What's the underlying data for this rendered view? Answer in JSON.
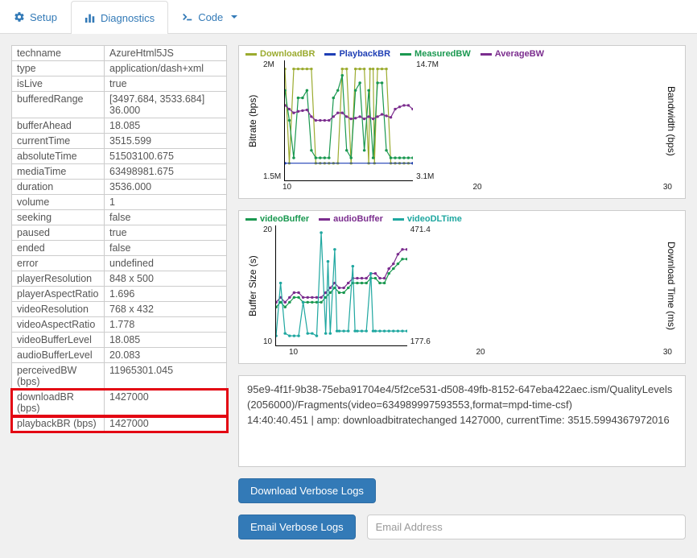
{
  "tabs": {
    "setup": {
      "label": "Setup"
    },
    "diagnostics": {
      "label": "Diagnostics"
    },
    "code": {
      "label": "Code"
    }
  },
  "colors": {
    "accent": "#337ab7",
    "highlight": "#e30613",
    "downloadBR": "#9bab2f",
    "playbackBR": "#1f3fb5",
    "measuredBW": "#1a9850",
    "averageBW": "#7b2d8e",
    "videoBuffer": "#1a9850",
    "audioBuffer": "#7b2d8e",
    "videoDLTime": "#1fa7a0"
  },
  "props": [
    {
      "k": "techname",
      "v": "AzureHtml5JS"
    },
    {
      "k": "type",
      "v": "application/dash+xml"
    },
    {
      "k": "isLive",
      "v": "true"
    },
    {
      "k": "bufferedRange",
      "v": "[3497.684, 3533.684] 36.000"
    },
    {
      "k": "bufferAhead",
      "v": "18.085"
    },
    {
      "k": "currentTime",
      "v": "3515.599"
    },
    {
      "k": "absoluteTime",
      "v": "51503100.675"
    },
    {
      "k": "mediaTime",
      "v": "63498981.675"
    },
    {
      "k": "duration",
      "v": "3536.000"
    },
    {
      "k": "volume",
      "v": "1"
    },
    {
      "k": "seeking",
      "v": "false"
    },
    {
      "k": "paused",
      "v": "true"
    },
    {
      "k": "ended",
      "v": "false"
    },
    {
      "k": "error",
      "v": "undefined"
    },
    {
      "k": "playerResolution",
      "v": "848 x 500"
    },
    {
      "k": "playerAspectRatio",
      "v": "1.696"
    },
    {
      "k": "videoResolution",
      "v": "768 x 432"
    },
    {
      "k": "videoAspectRatio",
      "v": "1.778"
    },
    {
      "k": "videoBufferLevel",
      "v": "18.085"
    },
    {
      "k": "audioBufferLevel",
      "v": "20.083"
    },
    {
      "k": "perceivedBW (bps)",
      "v": "11965301.045"
    },
    {
      "k": "downloadBR (bps)",
      "v": "1427000",
      "highlight": true
    },
    {
      "k": "playbackBR (bps)",
      "v": "1427000",
      "highlight": true
    }
  ],
  "chart1": {
    "legend": [
      {
        "name": "DownloadBR",
        "color": "#9bab2f"
      },
      {
        "name": "PlaybackBR",
        "color": "#1f3fb5"
      },
      {
        "name": "MeasuredBW",
        "color": "#1a9850"
      },
      {
        "name": "AverageBW",
        "color": "#7b2d8e"
      }
    ],
    "ylabel_left": "Bitrate (bps)",
    "ylabel_right": "Bandwidth (bps)",
    "yticks_left": [
      "2M",
      "1.5M"
    ],
    "yticks_right": [
      "14.7M",
      "3.1M"
    ],
    "xticks": [
      "10",
      "20",
      "30"
    ],
    "xlim": [
      7,
      36
    ],
    "series": {
      "downloadBR": {
        "color": "#9bab2f",
        "ylim": [
          1.4,
          2.1
        ],
        "pts": [
          [
            7,
            2.05
          ],
          [
            8,
            1.5
          ],
          [
            9,
            2.05
          ],
          [
            10,
            2.05
          ],
          [
            11,
            2.05
          ],
          [
            12,
            2.05
          ],
          [
            13,
            2.05
          ],
          [
            14,
            1.5
          ],
          [
            15,
            1.5
          ],
          [
            16,
            1.5
          ],
          [
            17,
            1.5
          ],
          [
            18,
            1.5
          ],
          [
            19,
            1.5
          ],
          [
            20,
            2.05
          ],
          [
            21,
            2.05
          ],
          [
            22,
            1.5
          ],
          [
            23,
            2.05
          ],
          [
            24,
            2.05
          ],
          [
            25,
            2.05
          ],
          [
            26,
            1.5
          ],
          [
            26.3,
            2.05
          ],
          [
            27,
            2.05
          ],
          [
            27.3,
            1.5
          ],
          [
            28,
            2.05
          ],
          [
            29,
            2.05
          ],
          [
            30,
            2.05
          ],
          [
            31,
            1.5
          ],
          [
            32,
            1.5
          ],
          [
            33,
            1.5
          ],
          [
            34,
            1.5
          ],
          [
            35,
            1.5
          ],
          [
            36,
            1.5
          ]
        ]
      },
      "playbackBR": {
        "color": "#1f3fb5",
        "ylim": [
          1.4,
          2.1
        ],
        "pts": [
          [
            7,
            1.5
          ],
          [
            36,
            1.5
          ]
        ]
      },
      "measuredBW": {
        "color": "#1a9850",
        "ylim": [
          0,
          16
        ],
        "pts": [
          [
            7,
            12
          ],
          [
            8,
            8
          ],
          [
            9,
            3
          ],
          [
            10,
            11
          ],
          [
            11,
            11
          ],
          [
            12,
            12
          ],
          [
            13,
            4
          ],
          [
            14,
            3
          ],
          [
            15,
            3
          ],
          [
            16,
            3
          ],
          [
            17,
            3
          ],
          [
            18,
            11
          ],
          [
            19,
            12
          ],
          [
            20,
            14
          ],
          [
            21,
            4
          ],
          [
            22,
            3
          ],
          [
            23,
            12
          ],
          [
            24,
            13
          ],
          [
            25,
            4
          ],
          [
            26,
            12
          ],
          [
            27,
            3
          ],
          [
            28,
            13
          ],
          [
            29,
            13
          ],
          [
            30,
            4
          ],
          [
            31,
            3
          ],
          [
            32,
            3
          ],
          [
            33,
            3
          ],
          [
            34,
            3
          ],
          [
            35,
            3
          ],
          [
            36,
            3
          ]
        ]
      },
      "averageBW": {
        "color": "#7b2d8e",
        "ylim": [
          0,
          16
        ],
        "pts": [
          [
            7,
            10
          ],
          [
            8,
            9.5
          ],
          [
            9,
            9
          ],
          [
            10,
            9.2
          ],
          [
            11,
            9.3
          ],
          [
            12,
            9.4
          ],
          [
            13,
            8.5
          ],
          [
            14,
            8
          ],
          [
            15,
            8
          ],
          [
            16,
            8
          ],
          [
            17,
            8
          ],
          [
            18,
            8.5
          ],
          [
            19,
            9
          ],
          [
            20,
            9
          ],
          [
            21,
            8.5
          ],
          [
            22,
            8.2
          ],
          [
            23,
            8.3
          ],
          [
            24,
            8.5
          ],
          [
            25,
            8.2
          ],
          [
            26,
            8.5
          ],
          [
            27,
            8.2
          ],
          [
            28,
            8.5
          ],
          [
            29,
            8.8
          ],
          [
            30,
            8.6
          ],
          [
            31,
            8.4
          ],
          [
            32,
            9.5
          ],
          [
            33,
            9.8
          ],
          [
            34,
            10
          ],
          [
            35,
            10
          ],
          [
            36,
            9.5
          ]
        ]
      }
    }
  },
  "chart2": {
    "legend": [
      {
        "name": "videoBuffer",
        "color": "#1a9850"
      },
      {
        "name": "audioBuffer",
        "color": "#7b2d8e"
      },
      {
        "name": "videoDLTime",
        "color": "#1fa7a0"
      }
    ],
    "ylabel_left": "Buffer Size (s)",
    "ylabel_right": "Download Time (ms)",
    "yticks_left": [
      "20",
      "10"
    ],
    "yticks_right": [
      "471.4",
      "177.6"
    ],
    "xticks": [
      "10",
      "20",
      "30"
    ],
    "xlim": [
      7,
      36
    ],
    "series": {
      "videoBuffer": {
        "color": "#1a9850",
        "ylim": [
          0,
          25
        ],
        "pts": [
          [
            7,
            8
          ],
          [
            8,
            9
          ],
          [
            9,
            8
          ],
          [
            10,
            9
          ],
          [
            11,
            10
          ],
          [
            12,
            10
          ],
          [
            13,
            9
          ],
          [
            14,
            9
          ],
          [
            15,
            9
          ],
          [
            16,
            9
          ],
          [
            17,
            9
          ],
          [
            18,
            10
          ],
          [
            19,
            11
          ],
          [
            20,
            12
          ],
          [
            21,
            11
          ],
          [
            22,
            11
          ],
          [
            23,
            12
          ],
          [
            24,
            13
          ],
          [
            25,
            13
          ],
          [
            26,
            13
          ],
          [
            27,
            13
          ],
          [
            28,
            14
          ],
          [
            29,
            14
          ],
          [
            30,
            13
          ],
          [
            31,
            13
          ],
          [
            32,
            15
          ],
          [
            33,
            16
          ],
          [
            34,
            17
          ],
          [
            35,
            18
          ],
          [
            36,
            18
          ]
        ]
      },
      "audioBuffer": {
        "color": "#7b2d8e",
        "ylim": [
          0,
          25
        ],
        "pts": [
          [
            7,
            9
          ],
          [
            8,
            10
          ],
          [
            9,
            9
          ],
          [
            10,
            10
          ],
          [
            11,
            11
          ],
          [
            12,
            11
          ],
          [
            13,
            10
          ],
          [
            14,
            10
          ],
          [
            15,
            10
          ],
          [
            16,
            10
          ],
          [
            17,
            10
          ],
          [
            18,
            11
          ],
          [
            19,
            12
          ],
          [
            20,
            13
          ],
          [
            21,
            12
          ],
          [
            22,
            12
          ],
          [
            23,
            13
          ],
          [
            24,
            14
          ],
          [
            25,
            14
          ],
          [
            26,
            14
          ],
          [
            27,
            14
          ],
          [
            28,
            15
          ],
          [
            29,
            15
          ],
          [
            30,
            14
          ],
          [
            31,
            14
          ],
          [
            32,
            16
          ],
          [
            33,
            17
          ],
          [
            34,
            19
          ],
          [
            35,
            20
          ],
          [
            36,
            20
          ]
        ]
      },
      "videoDLTime": {
        "color": "#1fa7a0",
        "ylim": [
          0,
          500
        ],
        "pts": [
          [
            7,
            40
          ],
          [
            8,
            260
          ],
          [
            9,
            50
          ],
          [
            10,
            40
          ],
          [
            11,
            40
          ],
          [
            12,
            40
          ],
          [
            13,
            180
          ],
          [
            14,
            50
          ],
          [
            15,
            50
          ],
          [
            16,
            40
          ],
          [
            17,
            470
          ],
          [
            18,
            50
          ],
          [
            18.5,
            350
          ],
          [
            19,
            50
          ],
          [
            20,
            400
          ],
          [
            20.5,
            60
          ],
          [
            21,
            60
          ],
          [
            22,
            60
          ],
          [
            23,
            60
          ],
          [
            24,
            330
          ],
          [
            24.5,
            60
          ],
          [
            25,
            60
          ],
          [
            26,
            60
          ],
          [
            27,
            60
          ],
          [
            28,
            300
          ],
          [
            28.5,
            60
          ],
          [
            29,
            60
          ],
          [
            30,
            60
          ],
          [
            31,
            60
          ],
          [
            32,
            60
          ],
          [
            33,
            60
          ],
          [
            34,
            60
          ],
          [
            35,
            60
          ],
          [
            36,
            60
          ]
        ]
      }
    }
  },
  "log": {
    "lines": [
      "95e9-4f1f-9b38-75eba91704e4/5f2ce531-d508-49fb-8152-647eba422aec.ism/QualityLevels(2056000)/Fragments(video=634989997593553,format=mpd-time-csf)",
      "14:40:40.451 | amp: downloadbitratechanged 1427000, currentTime: 3515.5994367972016"
    ]
  },
  "buttons": {
    "download": "Download Verbose Logs",
    "email": "Email Verbose Logs",
    "email_placeholder": "Email Address"
  }
}
